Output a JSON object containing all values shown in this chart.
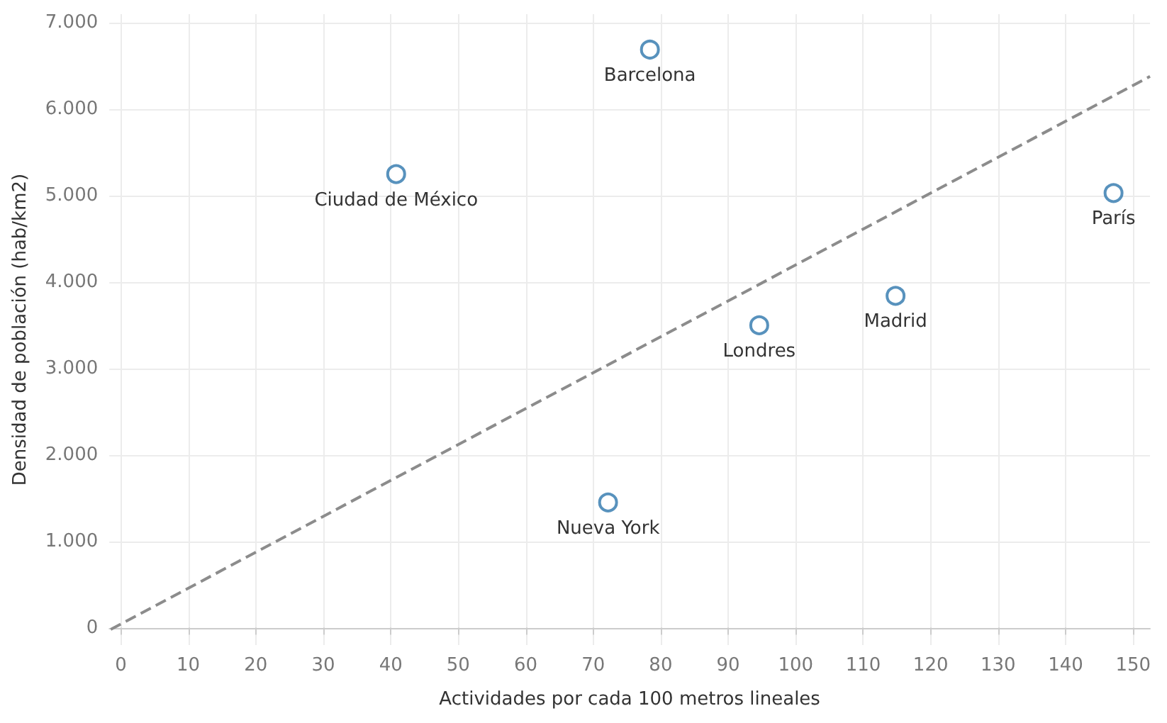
{
  "chart_data": {
    "type": "scatter",
    "xlabel": "Actividades por cada 100 metros lineales",
    "ylabel": "Densidad de población (hab/km2)",
    "xlim": [
      -1.7,
      152.5
    ],
    "ylim": [
      -200,
      7100
    ],
    "xticks": [
      0,
      10,
      20,
      30,
      40,
      50,
      60,
      70,
      80,
      90,
      100,
      110,
      120,
      130,
      140,
      150
    ],
    "yticks": [
      0,
      {
        "value": 1000,
        "label": "1.000"
      },
      {
        "value": 2000,
        "label": "2.000"
      },
      {
        "value": 3000,
        "label": "3.000"
      },
      {
        "value": 4000,
        "label": "4.000"
      },
      {
        "value": 5000,
        "label": "5.000"
      },
      {
        "value": 6000,
        "label": "6.000"
      },
      {
        "value": 7000,
        "label": "7.000"
      }
    ],
    "grid": true,
    "series": [
      {
        "color": "#2e77ad",
        "marker": "circle",
        "x": [
          78.4,
          40.8,
          72.2,
          94.6,
          114.8,
          147.1
        ],
        "values": [
          6690,
          5250,
          1450,
          3500,
          3840,
          5030
        ]
      },
      {
        "type": "line",
        "color": "#8c8c8c",
        "line_style": "dashed",
        "marker": "none",
        "x": [
          -1.5,
          152.5
        ],
        "values": [
          -20,
          6380
        ]
      }
    ],
    "annotations": [
      {
        "text": "Barcelona",
        "x": 78.4,
        "y": 6690
      },
      {
        "text": "Ciudad de México",
        "x": 40.8,
        "y": 5250
      },
      {
        "text": "Nueva York",
        "x": 72.2,
        "y": 1450
      },
      {
        "text": "Londres",
        "x": 94.6,
        "y": 3500
      },
      {
        "text": "Madrid",
        "x": 114.8,
        "y": 3840
      },
      {
        "text": "París",
        "x": 147.1,
        "y": 5030
      }
    ]
  }
}
